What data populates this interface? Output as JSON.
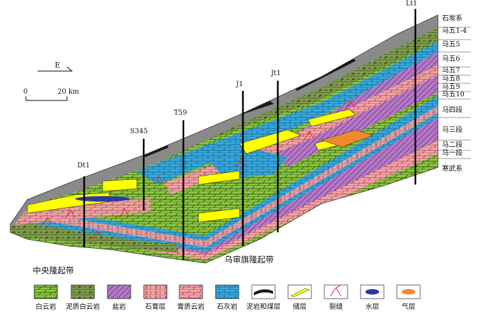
{
  "compass": {
    "direction": "E"
  },
  "scale": {
    "zero": "0",
    "distance": "20 km"
  },
  "wells": [
    "Dt1",
    "S345",
    "T59",
    "J1",
    "Jt1",
    "Lt1"
  ],
  "formations": [
    "石炭系",
    "马五1-4",
    "马五5",
    "马五6",
    "马五7",
    "马五8",
    "马五9",
    "马五10",
    "马四段",
    "马三段",
    "马二段",
    "马一段",
    "寒武系"
  ],
  "regions": {
    "central": "中央隆起带",
    "wushenqi": "乌审旗隆起带"
  },
  "legend": [
    {
      "label": "白云岩",
      "icon": "dolomite-swatch"
    },
    {
      "label": "泥质白云岩",
      "icon": "argillaceous-dolomite-swatch"
    },
    {
      "label": "盐岩",
      "icon": "salt-rock-swatch"
    },
    {
      "label": "石膏层",
      "icon": "gypsum-swatch"
    },
    {
      "label": "膏质云岩",
      "icon": "gypsiferous-dolomite-swatch"
    },
    {
      "label": "石灰岩",
      "icon": "limestone-swatch"
    },
    {
      "label": "泥岩和煤层",
      "icon": "mudstone-coal-swatch"
    },
    {
      "label": "储层",
      "icon": "reservoir-swatch"
    },
    {
      "label": "裂缝",
      "icon": "fracture-swatch"
    },
    {
      "label": "水层",
      "icon": "water-layer-swatch"
    },
    {
      "label": "气层",
      "icon": "gas-layer-swatch"
    }
  ],
  "colors": {
    "dolomite": "#8cc63f",
    "argillaceous_dolomite": "#7d9a4a",
    "salt": "#b477c6",
    "gypsum": "#f3a3a6",
    "limestone": "#35a7dc",
    "reservoir": "#ffff00",
    "carboniferous": "#8a8a8a",
    "coal": "#1a1a1a",
    "water": "#2e3a9e",
    "gas": "#f08a2e",
    "fracture": "#e8231f"
  }
}
